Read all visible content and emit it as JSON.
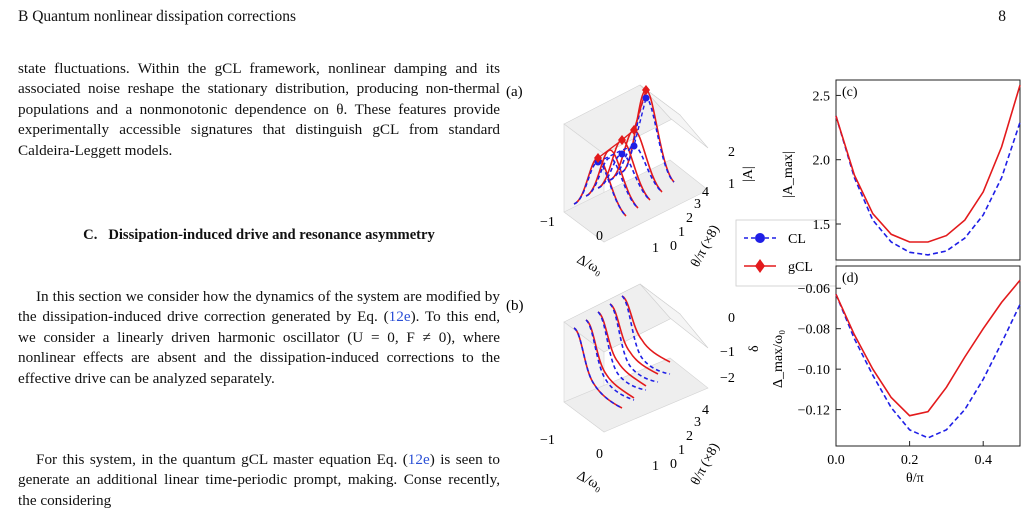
{
  "header": {
    "section_title": "B   Quantum nonlinear dissipation corrections",
    "page_number": "8"
  },
  "para1": "state fluctuations. Within the gCL framework, nonlinear damping and its associated noise reshape the stationary distribution, producing non-thermal populations and a nonmonotonic dependence on θ. These features provide experimentally accessible signatures that distinguish gCL from standard Caldeira-Leggett models.",
  "section": {
    "number": "C.",
    "title": "Dissipation-induced drive and resonance asymmetry"
  },
  "para2": {
    "a": "In this section we consider how the dynamics of the system are modified by the dissipation-induced drive correction generated by Eq. (",
    "ref": "12e",
    "b": "). To this end, we consider a linearly driven harmonic oscillator (U = 0, F ≠ 0), where nonlinear effects are absent and the dissipation-induced corrections to the effective drive can be analyzed separately."
  },
  "para3": {
    "a": "For this system, in the quantum gCL master equation Eq. (",
    "ref": "12e",
    "b": ") is seen to generate an additional linear time-periodic prompt, making. Conse recently, the considering"
  },
  "figure": {
    "panel_a": {
      "label": "(a)",
      "zlabel": "|A|",
      "zticks": [
        "1",
        "2"
      ],
      "xlabel": "Δ/ω₀",
      "xticks": [
        "−1",
        "0",
        "1"
      ],
      "ylabel": "θ/π (×8)",
      "yticks": [
        "0",
        "1",
        "2",
        "3",
        "4"
      ]
    },
    "panel_b": {
      "label": "(b)",
      "zlabel": "δ",
      "zticks": [
        "0",
        "−1",
        "−2"
      ],
      "xlabel": "Δ/ω₀",
      "xticks": [
        "−1",
        "0",
        "1"
      ],
      "ylabel": "θ/π (×8)",
      "yticks": [
        "0",
        "1",
        "2",
        "3",
        "4"
      ]
    },
    "legend": [
      {
        "name": "CL",
        "color": "#1f1fe6",
        "marker": "circle",
        "line": "dashed"
      },
      {
        "name": "gCL",
        "color": "#e31a1c",
        "marker": "diamond",
        "line": "solid"
      }
    ],
    "panel_c": {
      "label": "(c)",
      "ylabel": "|A_max|",
      "yticks": [
        "1.5",
        "2.0",
        "2.5"
      ]
    },
    "panel_d": {
      "label": "(d)",
      "ylabel": "Δ_max/ω₀",
      "yticks": [
        "−0.06",
        "−0.08",
        "−0.10",
        "−0.12"
      ],
      "xticks": [
        "0.0",
        "0.2",
        "0.4"
      ],
      "xlabel": "θ/π"
    }
  },
  "chart_data": [
    {
      "type": "line",
      "panel": "(c)",
      "xlabel": "θ/π",
      "ylabel": "|A_max|",
      "xlim": [
        0,
        0.5
      ],
      "ylim": [
        1.22,
        2.62
      ],
      "grid": false,
      "series": [
        {
          "name": "CL",
          "color": "#1f1fe6",
          "dash": true,
          "x": [
            0.0,
            0.05,
            0.1,
            0.15,
            0.2,
            0.25,
            0.3,
            0.35,
            0.4,
            0.45,
            0.5
          ],
          "values": [
            2.34,
            1.86,
            1.53,
            1.36,
            1.28,
            1.26,
            1.29,
            1.39,
            1.57,
            1.86,
            2.29
          ]
        },
        {
          "name": "gCL",
          "color": "#e31a1c",
          "dash": false,
          "x": [
            0.0,
            0.05,
            0.1,
            0.15,
            0.2,
            0.25,
            0.3,
            0.35,
            0.4,
            0.45,
            0.5
          ],
          "values": [
            2.34,
            1.88,
            1.58,
            1.42,
            1.36,
            1.36,
            1.41,
            1.53,
            1.75,
            2.1,
            2.58
          ]
        }
      ]
    },
    {
      "type": "line",
      "panel": "(d)",
      "xlabel": "θ/π",
      "ylabel": "Δ_max/ω₀",
      "xlim": [
        0,
        0.5
      ],
      "ylim": [
        -0.138,
        -0.049
      ],
      "grid": false,
      "series": [
        {
          "name": "CL",
          "color": "#1f1fe6",
          "dash": true,
          "x": [
            0.0,
            0.05,
            0.1,
            0.15,
            0.2,
            0.25,
            0.3,
            0.35,
            0.4,
            0.45,
            0.5
          ],
          "values": [
            -0.063,
            -0.085,
            -0.103,
            -0.119,
            -0.13,
            -0.134,
            -0.13,
            -0.12,
            -0.105,
            -0.087,
            -0.068
          ]
        },
        {
          "name": "gCL",
          "color": "#e31a1c",
          "dash": false,
          "x": [
            0.0,
            0.05,
            0.1,
            0.15,
            0.2,
            0.25,
            0.3,
            0.35,
            0.4,
            0.45,
            0.5
          ],
          "values": [
            -0.063,
            -0.083,
            -0.1,
            -0.114,
            -0.123,
            -0.121,
            -0.109,
            -0.094,
            -0.08,
            -0.067,
            -0.056
          ]
        }
      ]
    }
  ]
}
